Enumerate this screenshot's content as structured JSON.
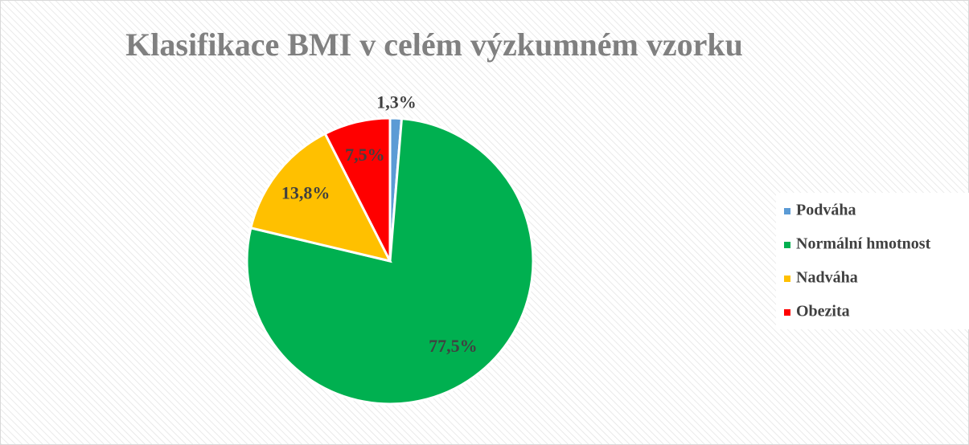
{
  "chart_data": {
    "type": "pie",
    "title": "Klasifikace BMI v celém výzkumném vzorku",
    "categories": [
      "Podváha",
      "Normální hmotnost",
      "Nadváha",
      "Obezita"
    ],
    "values": [
      1.3,
      77.5,
      13.8,
      7.5
    ],
    "value_labels": [
      "1,3%",
      "77,5%",
      "13,8%",
      "7,5%"
    ],
    "colors": [
      "#5b9bd5",
      "#00b050",
      "#ffc000",
      "#ff0000"
    ],
    "legend": "right"
  }
}
